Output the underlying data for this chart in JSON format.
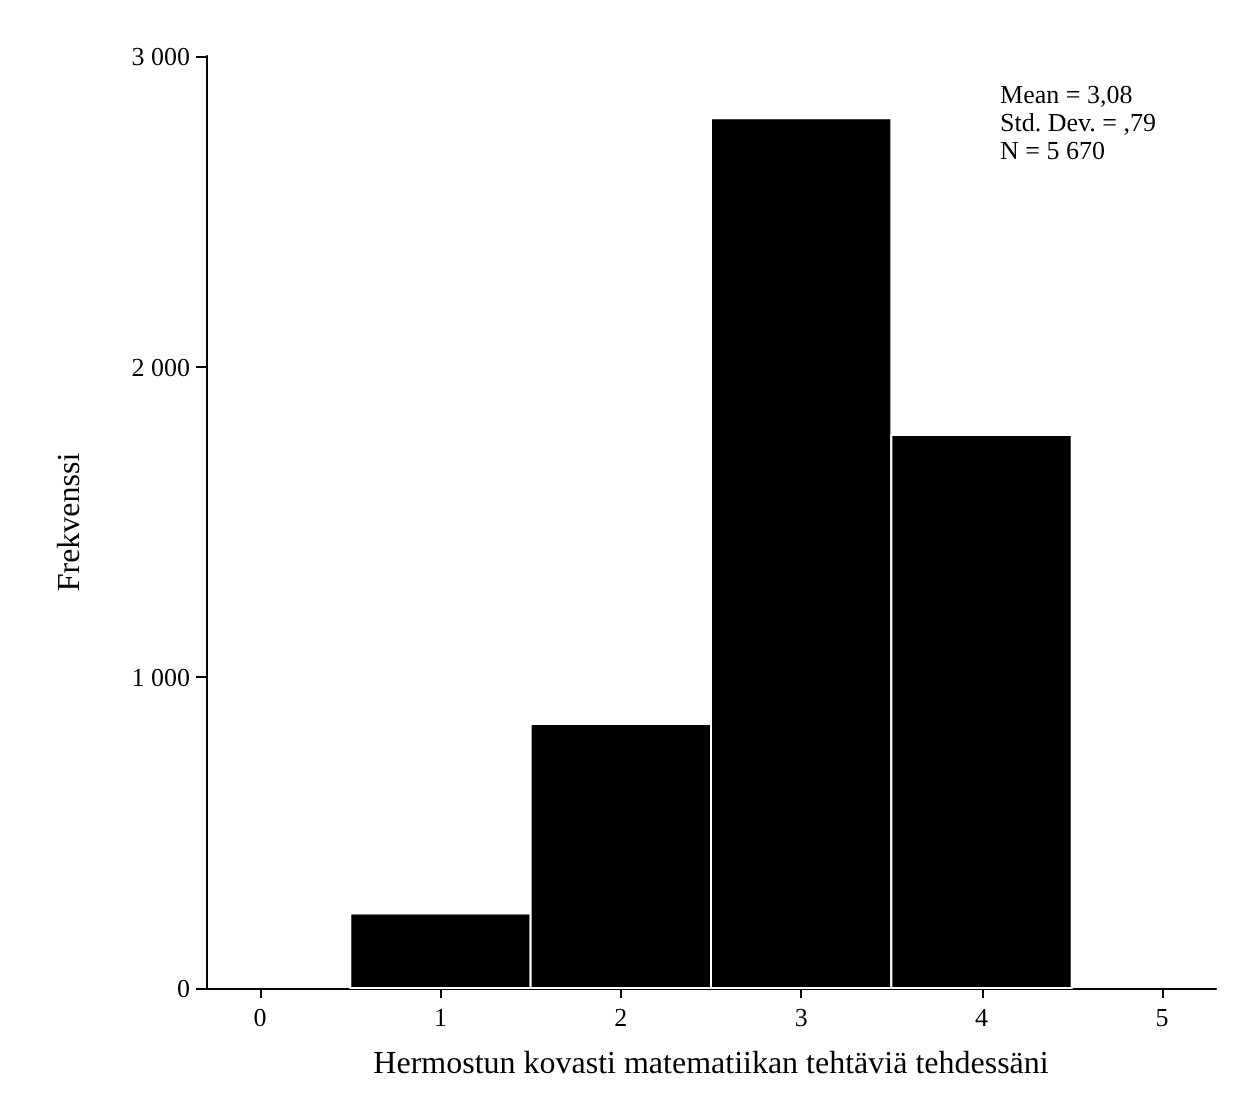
{
  "chart_data": {
    "type": "histogram",
    "xlabel": "Hermostun kovasti matematiikan tehtäviä tehdessäni",
    "ylabel": "Frekvenssi",
    "bins": [
      0.5,
      1.5,
      2.5,
      3.5,
      4.5
    ],
    "values": [
      240,
      850,
      2800,
      1780
    ],
    "color": "#000000",
    "xlim": [
      -0.3,
      5.3
    ],
    "xticks": [
      0,
      1,
      2,
      3,
      4,
      5
    ],
    "ylim": [
      0,
      3000
    ],
    "yticks": [
      0,
      {
        "value": 1000,
        "label": "1 000"
      },
      {
        "value": 2000,
        "label": "2 000"
      },
      {
        "value": 3000,
        "label": "3 000"
      }
    ],
    "grid": false,
    "annotations": [
      "Mean = 3,08",
      "Std. Dev. = ,79",
      "N = 5 670"
    ]
  }
}
